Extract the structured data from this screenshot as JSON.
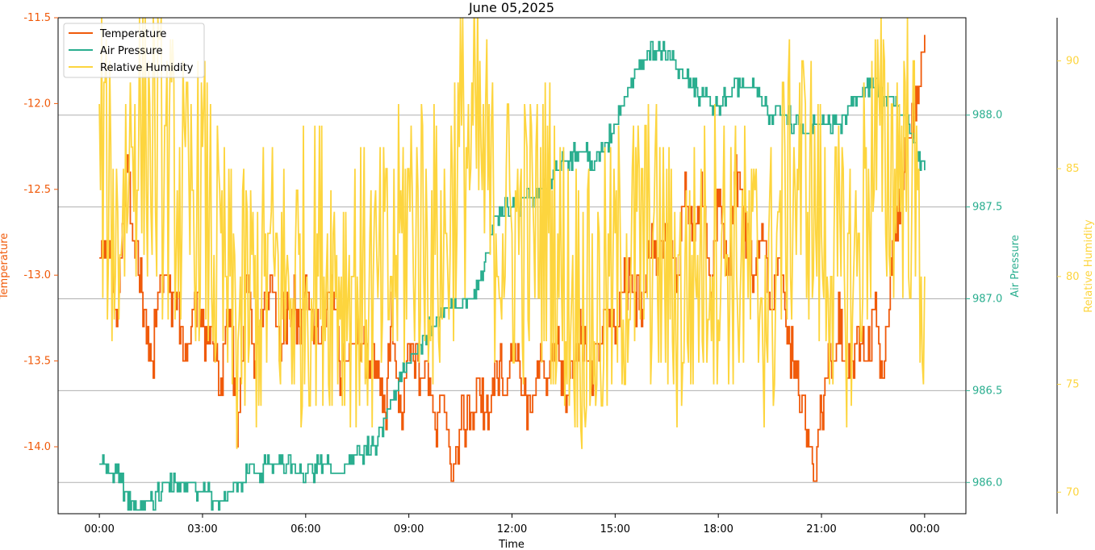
{
  "colors": {
    "temperature": "#f05a0a",
    "pressure": "#2aae8f",
    "humidity": "#fdd53e",
    "axis": "#000000",
    "grid": "#b0b0b0"
  },
  "chart_data": {
    "type": "line",
    "title": "June 05,2025",
    "xlabel": "Time",
    "x_ticks": [
      "00:00",
      "03:00",
      "06:00",
      "09:00",
      "12:00",
      "15:00",
      "18:00",
      "21:00",
      "00:00"
    ],
    "x_range_hours": [
      -1.2,
      25.2
    ],
    "grid": "horizontal lines at right-axis (Air Pressure) ticks",
    "legend_position": "upper-left",
    "axes": {
      "left": {
        "label": "Temperature",
        "range": [
          -14.39,
          -11.5
        ],
        "ticks": [
          "-11.5",
          "-12.0",
          "-12.5",
          "-13.0",
          "-13.5",
          "-14.0"
        ],
        "tick_values": [
          -11.5,
          -12.0,
          -12.5,
          -13.0,
          -13.5,
          -14.0
        ]
      },
      "right": {
        "label": "Air Pressure",
        "range": [
          985.83,
          988.53
        ],
        "ticks": [
          "988.0",
          "987.5",
          "987.0",
          "986.5",
          "986.0"
        ],
        "tick_values": [
          988.0,
          987.5,
          987.0,
          986.5,
          986.0
        ]
      },
      "right2": {
        "label": "Relative Humidity",
        "range": [
          69.0,
          92.0
        ],
        "ticks": [
          "90",
          "85",
          "80",
          "75",
          "70"
        ],
        "tick_values": [
          90,
          85,
          80,
          75,
          70
        ]
      }
    },
    "series": [
      {
        "name": "Temperature",
        "axis": "left",
        "x_hours": [
          0,
          0.3,
          0.5,
          0.8,
          1.0,
          1.2,
          1.5,
          1.8,
          2.0,
          2.3,
          2.5,
          2.8,
          3.0,
          3.3,
          3.5,
          3.8,
          4.0,
          4.3,
          4.5,
          4.8,
          5.0,
          5.3,
          5.5,
          5.8,
          6.0,
          6.3,
          6.5,
          6.8,
          7.0,
          7.3,
          7.5,
          7.8,
          8.0,
          8.3,
          8.5,
          8.8,
          9.0,
          9.3,
          9.5,
          9.8,
          10.0,
          10.3,
          10.5,
          10.8,
          11.0,
          11.3,
          11.5,
          11.8,
          12.0,
          12.3,
          12.5,
          12.8,
          13.0,
          13.3,
          13.5,
          13.8,
          14.0,
          14.3,
          14.5,
          14.8,
          15.0,
          15.3,
          15.5,
          15.8,
          16.0,
          16.3,
          16.5,
          16.8,
          17.0,
          17.3,
          17.5,
          17.8,
          18.0,
          18.3,
          18.5,
          18.8,
          19.0,
          19.3,
          19.5,
          19.8,
          20.0,
          20.3,
          20.5,
          20.8,
          21.0,
          21.3,
          21.5,
          21.8,
          22.0,
          22.3,
          22.5,
          22.8,
          23.0,
          23.3,
          23.5,
          23.8,
          24.0
        ],
        "values": [
          -13.0,
          -12.8,
          -13.3,
          -12.3,
          -12.8,
          -13.1,
          -13.5,
          -13.0,
          -13.1,
          -13.2,
          -13.5,
          -13.1,
          -13.3,
          -13.4,
          -13.7,
          -13.1,
          -13.9,
          -13.0,
          -13.5,
          -13.2,
          -13.0,
          -13.4,
          -13.1,
          -13.3,
          -13.1,
          -13.4,
          -13.2,
          -13.1,
          -13.5,
          -13.4,
          -13.3,
          -13.6,
          -13.5,
          -13.8,
          -13.3,
          -13.9,
          -13.4,
          -13.6,
          -13.5,
          -13.9,
          -13.7,
          -14.2,
          -13.8,
          -13.9,
          -13.6,
          -13.8,
          -13.5,
          -13.7,
          -13.4,
          -13.6,
          -13.8,
          -13.5,
          -13.6,
          -13.4,
          -13.7,
          -13.5,
          -13.3,
          -13.6,
          -13.4,
          -13.2,
          -13.3,
          -13.0,
          -13.1,
          -13.2,
          -12.8,
          -12.9,
          -12.7,
          -13.0,
          -12.5,
          -12.8,
          -12.5,
          -13.1,
          -12.5,
          -13.0,
          -12.4,
          -12.8,
          -13.0,
          -12.7,
          -13.2,
          -12.9,
          -13.4,
          -13.6,
          -13.8,
          -14.2,
          -13.7,
          -13.5,
          -13.3,
          -13.6,
          -13.4,
          -13.5,
          -13.2,
          -13.6,
          -13.0,
          -12.5,
          -12.2,
          -11.9,
          -11.6
        ],
        "max_label_value": -11.5
      },
      {
        "name": "Air Pressure",
        "axis": "right",
        "x_hours": [
          0,
          0.5,
          1.0,
          1.5,
          2.0,
          2.5,
          3.0,
          3.5,
          4.0,
          4.5,
          5.0,
          5.5,
          6.0,
          6.5,
          7.0,
          7.5,
          8.0,
          8.5,
          9.0,
          9.5,
          10.0,
          10.5,
          11.0,
          11.5,
          12.0,
          12.5,
          13.0,
          13.5,
          14.0,
          14.5,
          15.0,
          15.5,
          16.0,
          16.5,
          17.0,
          17.5,
          18.0,
          18.5,
          19.0,
          19.5,
          20.0,
          20.5,
          21.0,
          21.5,
          22.0,
          22.5,
          23.0,
          23.5,
          24.0
        ],
        "values": [
          986.1,
          986.05,
          985.85,
          985.9,
          986.0,
          986.0,
          985.95,
          985.9,
          986.0,
          986.05,
          986.1,
          986.1,
          986.05,
          986.1,
          986.05,
          986.15,
          986.2,
          986.45,
          986.65,
          986.8,
          986.95,
          986.95,
          987.05,
          987.45,
          987.5,
          987.55,
          987.6,
          987.75,
          987.8,
          987.75,
          987.95,
          988.2,
          988.35,
          988.35,
          988.2,
          988.1,
          988.05,
          988.15,
          988.15,
          988.0,
          988.0,
          987.9,
          987.95,
          987.95,
          988.1,
          988.15,
          988.1,
          987.95,
          987.7
        ]
      },
      {
        "name": "Relative Humidity",
        "axis": "right2",
        "x_hours": [
          0,
          0.5,
          1.0,
          1.5,
          2.0,
          2.5,
          3.0,
          3.5,
          4.0,
          4.5,
          5.0,
          5.5,
          6.0,
          6.5,
          7.0,
          7.5,
          8.0,
          8.5,
          9.0,
          9.5,
          10.0,
          10.5,
          11.0,
          11.5,
          12.0,
          12.5,
          13.0,
          13.5,
          14.0,
          14.5,
          15.0,
          15.5,
          16.0,
          16.5,
          17.0,
          17.5,
          18.0,
          18.5,
          19.0,
          19.5,
          20.0,
          20.5,
          21.0,
          21.5,
          22.0,
          22.5,
          23.0,
          23.5,
          24.0
        ],
        "values": [
          86,
          82,
          87,
          86,
          85,
          83,
          84,
          80,
          78,
          79,
          80,
          79,
          80,
          81,
          80,
          80,
          79,
          80,
          83,
          82,
          81,
          86,
          86,
          83,
          82,
          82,
          83,
          80,
          79,
          78,
          80,
          81,
          82,
          80,
          79,
          81,
          82,
          81,
          80,
          79,
          84,
          85,
          82,
          80,
          80,
          86,
          85,
          86,
          80
        ],
        "noise_amplitude": 7
      }
    ]
  }
}
